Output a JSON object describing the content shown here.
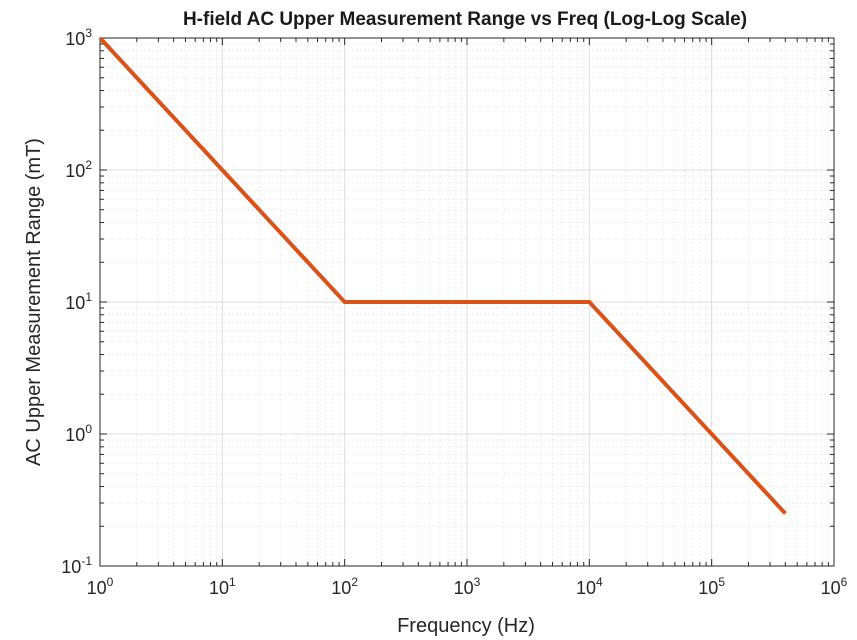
{
  "chart_data": {
    "type": "line",
    "title": "H-field AC Upper Measurement Range vs Freq (Log-Log Scale)",
    "xlabel": "Frequency (Hz)",
    "ylabel": "AC Upper Measurement Range (mT)",
    "xscale": "log",
    "yscale": "log",
    "xlim": [
      1,
      1000000
    ],
    "ylim": [
      0.1,
      1000
    ],
    "grid": true,
    "minor_grid": true,
    "line_color": "#d95319",
    "x_ticks": [
      {
        "base": "10",
        "exp": "0"
      },
      {
        "base": "10",
        "exp": "1"
      },
      {
        "base": "10",
        "exp": "2"
      },
      {
        "base": "10",
        "exp": "3"
      },
      {
        "base": "10",
        "exp": "4"
      },
      {
        "base": "10",
        "exp": "5"
      },
      {
        "base": "10",
        "exp": "6"
      }
    ],
    "y_ticks": [
      {
        "base": "10",
        "exp": "-1"
      },
      {
        "base": "10",
        "exp": "0"
      },
      {
        "base": "10",
        "exp": "1"
      },
      {
        "base": "10",
        "exp": "2"
      },
      {
        "base": "10",
        "exp": "3"
      }
    ],
    "series": [
      {
        "x": [
          1,
          100,
          10000,
          400000
        ],
        "y": [
          1000,
          10,
          10,
          0.25
        ]
      }
    ]
  }
}
